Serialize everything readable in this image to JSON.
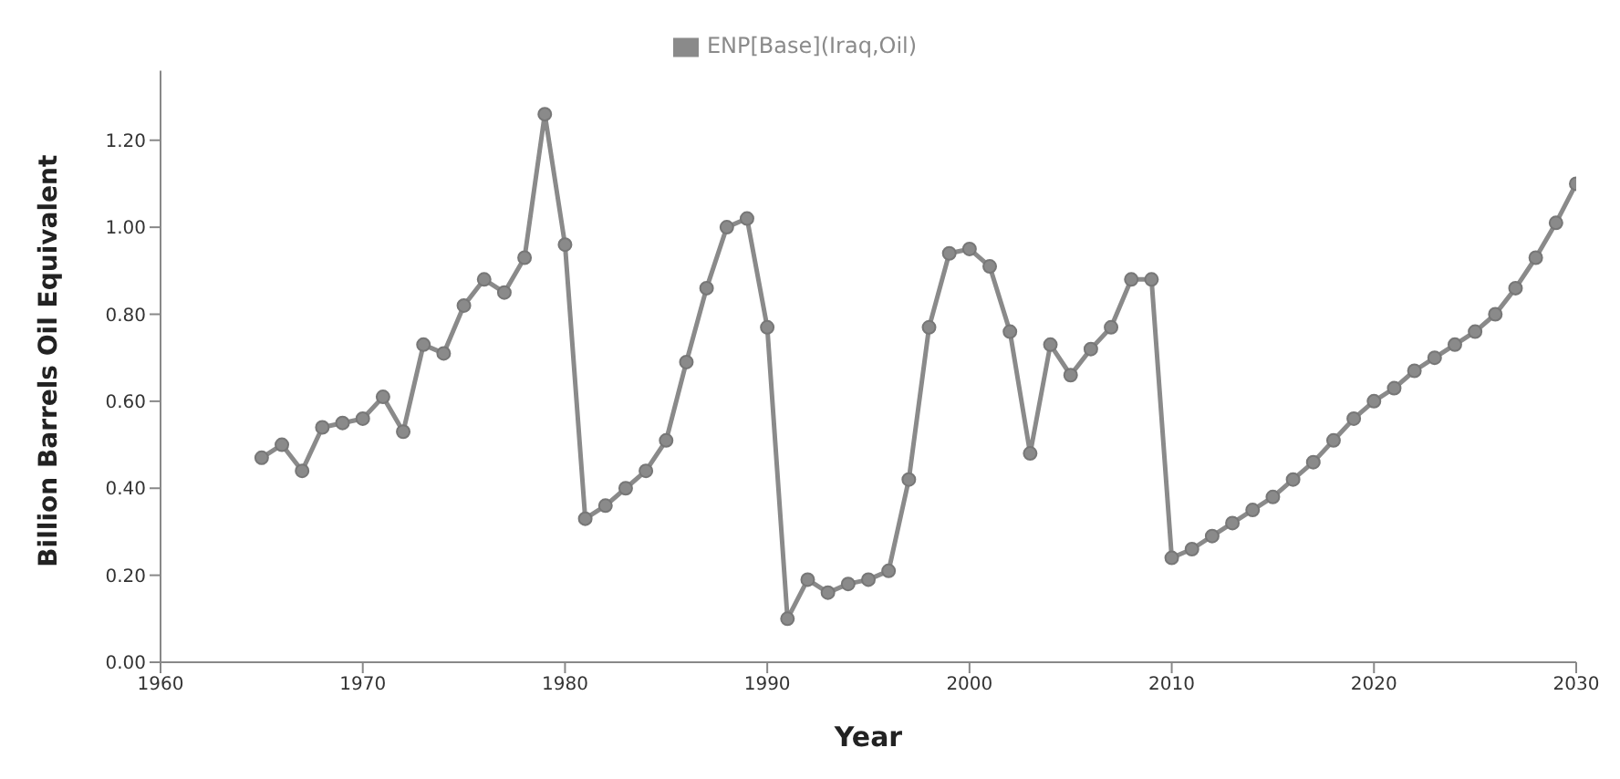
{
  "chart_data": {
    "type": "line",
    "xlabel": "Year",
    "ylabel": "Billion Barrels Oil Equivalent",
    "x": [
      1965,
      1966,
      1967,
      1968,
      1969,
      1970,
      1971,
      1972,
      1973,
      1974,
      1975,
      1976,
      1977,
      1978,
      1979,
      1980,
      1981,
      1982,
      1983,
      1984,
      1985,
      1986,
      1987,
      1988,
      1989,
      1990,
      1991,
      1992,
      1993,
      1994,
      1995,
      1996,
      1997,
      1998,
      1999,
      2000,
      2001,
      2002,
      2003,
      2004,
      2005,
      2006,
      2007,
      2008,
      2009,
      2010,
      2011,
      2012,
      2013,
      2014,
      2015,
      2016,
      2017,
      2018,
      2019,
      2020,
      2021,
      2022,
      2023,
      2024,
      2025,
      2026,
      2027,
      2028,
      2029,
      2030
    ],
    "series": [
      {
        "name": "ENP[Base](Iraq,Oil)",
        "color": "#8a8a8a",
        "values": [
          0.47,
          0.5,
          0.44,
          0.54,
          0.55,
          0.56,
          0.61,
          0.53,
          0.73,
          0.71,
          0.82,
          0.88,
          0.85,
          0.93,
          1.26,
          0.96,
          0.33,
          0.36,
          0.4,
          0.44,
          0.51,
          0.69,
          0.86,
          1.0,
          1.02,
          0.77,
          0.1,
          0.19,
          0.16,
          0.18,
          0.19,
          0.21,
          0.42,
          0.77,
          0.94,
          0.95,
          0.91,
          0.76,
          0.48,
          0.73,
          0.66,
          0.72,
          0.77,
          0.88,
          0.88,
          0.24,
          0.26,
          0.29,
          0.32,
          0.35,
          0.38,
          0.42,
          0.46,
          0.51,
          0.56,
          0.6,
          0.63,
          0.67,
          0.7,
          0.73,
          0.76,
          0.8,
          0.86,
          0.93,
          1.01,
          1.1
        ]
      }
    ],
    "xlim": [
      1960,
      2030
    ],
    "xticks": [
      1960,
      1970,
      1980,
      1990,
      2000,
      2010,
      2020,
      2030
    ],
    "ylim": [
      0,
      1.36
    ],
    "yticks": [
      {
        "value": 0,
        "label": "0.00"
      },
      {
        "value": 0.2,
        "label": "0.20"
      },
      {
        "value": 0.4,
        "label": "0.40"
      },
      {
        "value": 0.6,
        "label": "0.60"
      },
      {
        "value": 0.8,
        "label": "0.80"
      },
      {
        "value": 1.0,
        "label": "1.00"
      },
      {
        "value": 1.2,
        "label": "1.20"
      }
    ],
    "grid": false,
    "legend": "top",
    "marker": "circle",
    "line_style": "solid"
  }
}
